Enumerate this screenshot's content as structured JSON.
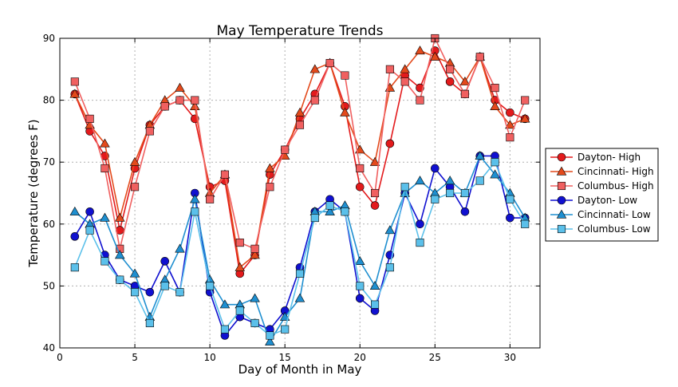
{
  "chart_data": {
    "type": "line",
    "title": "May Temperature Trends",
    "xlabel": "Day of Month in May",
    "ylabel": "Temperature (degrees F)",
    "xlim": [
      0,
      32
    ],
    "ylim": [
      40,
      90
    ],
    "xticks": [
      0,
      5,
      10,
      15,
      20,
      25,
      30
    ],
    "yticks": [
      40,
      50,
      60,
      70,
      80,
      90
    ],
    "grid": true,
    "legend_position": "right",
    "x": [
      1,
      2,
      3,
      4,
      5,
      6,
      7,
      8,
      9,
      10,
      11,
      12,
      13,
      14,
      15,
      16,
      17,
      18,
      19,
      20,
      21,
      22,
      23,
      24,
      25,
      26,
      27,
      28,
      29,
      30,
      31
    ],
    "series": [
      {
        "name": "Dayton- High",
        "color": "#e31a1c",
        "marker": "circle",
        "values": [
          81,
          75,
          71,
          59,
          69,
          76,
          79,
          80,
          77,
          66,
          67,
          52,
          55,
          68,
          72,
          77,
          81,
          86,
          79,
          66,
          63,
          73,
          84,
          82,
          88,
          83,
          81,
          87,
          80,
          78,
          77
        ]
      },
      {
        "name": "Cincinnati- High",
        "color": "#e34a1c",
        "marker": "triangle",
        "values": [
          81,
          76,
          73,
          61,
          70,
          76,
          80,
          82,
          79,
          65,
          68,
          53,
          55,
          69,
          71,
          78,
          85,
          86,
          78,
          72,
          70,
          82,
          85,
          88,
          87,
          86,
          83,
          87,
          79,
          76,
          77
        ]
      },
      {
        "name": "Columbus- High",
        "color": "#f06060",
        "marker": "square",
        "values": [
          83,
          77,
          69,
          56,
          66,
          75,
          79,
          80,
          80,
          64,
          68,
          57,
          56,
          66,
          72,
          76,
          80,
          86,
          84,
          69,
          65,
          85,
          83,
          80,
          90,
          85,
          81,
          87,
          82,
          74,
          80
        ]
      },
      {
        "name": "Dayton- Low",
        "color": "#1010d0",
        "marker": "circle",
        "values": [
          58,
          62,
          55,
          51,
          50,
          49,
          54,
          49,
          65,
          49,
          42,
          45,
          44,
          43,
          46,
          53,
          62,
          64,
          62,
          48,
          46,
          55,
          65,
          60,
          69,
          66,
          62,
          71,
          71,
          61,
          61
        ]
      },
      {
        "name": "Cincinnati- Low",
        "color": "#1f8fd0",
        "marker": "triangle",
        "values": [
          62,
          60,
          61,
          55,
          52,
          45,
          51,
          56,
          64,
          51,
          47,
          47,
          48,
          41,
          45,
          48,
          62,
          62,
          63,
          54,
          50,
          59,
          65,
          67,
          65,
          67,
          65,
          71,
          68,
          65,
          61
        ]
      },
      {
        "name": "Columbus- Low",
        "color": "#5bc0ea",
        "marker": "square",
        "values": [
          53,
          59,
          54,
          51,
          49,
          44,
          50,
          49,
          62,
          50,
          43,
          46,
          44,
          42,
          43,
          52,
          61,
          63,
          62,
          50,
          47,
          53,
          66,
          57,
          64,
          65,
          65,
          67,
          70,
          64,
          60
        ]
      }
    ]
  }
}
